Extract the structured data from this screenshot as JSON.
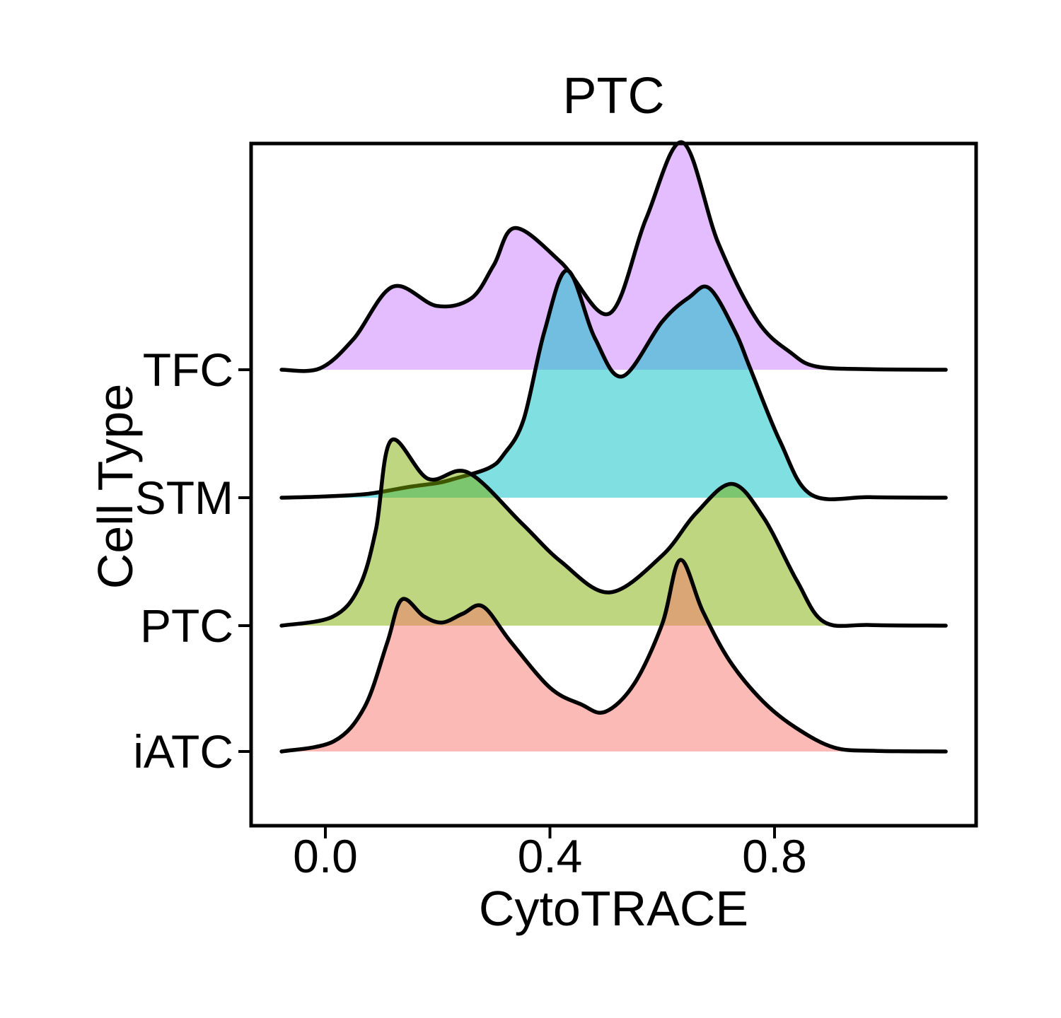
{
  "title": "PTC",
  "axes": {
    "x_label": "CytoTRACE",
    "y_label": "Cell Type",
    "x_ticks": [
      {
        "value": 0.0,
        "label": "0.0"
      },
      {
        "value": 0.4,
        "label": "0.4"
      },
      {
        "value": 0.8,
        "label": "0.8"
      }
    ],
    "y_ticks": [
      "TFC",
      "STM",
      "PTC",
      "iATC"
    ]
  },
  "style": {
    "outline_color": "#000000",
    "fill_opacity": 0.5,
    "background": "#ffffff"
  },
  "chart_data": {
    "type": "area",
    "variant": "ridgeline-density",
    "title": "PTC",
    "xlabel": "CytoTRACE",
    "ylabel": "Cell Type",
    "x_range_shown": [
      -0.13,
      1.16
    ],
    "x_tick_values": [
      0.0,
      0.4,
      0.8
    ],
    "grid": false,
    "legend": false,
    "categories_top_to_bottom": [
      "TFC",
      "STM",
      "PTC",
      "iATC"
    ],
    "series": [
      {
        "name": "TFC",
        "fill": "#C77CFF",
        "fill_opacity": 0.5,
        "outline": "#000000",
        "peaks_x": [
          0.12,
          0.34,
          0.64
        ],
        "density_profile": {
          "x": [
            -0.078,
            -0.01,
            0.05,
            0.12,
            0.198,
            0.26,
            0.3,
            0.338,
            0.42,
            0.506,
            0.571,
            0.636,
            0.7,
            0.77,
            0.83,
            0.875,
            0.97,
            1.105
          ],
          "height": [
            0,
            0.01,
            0.24,
            0.65,
            0.5,
            0.56,
            0.82,
            1.11,
            0.84,
            0.44,
            1.18,
            1.78,
            0.99,
            0.38,
            0.13,
            0.025,
            0.004,
            0
          ]
        }
      },
      {
        "name": "STM",
        "fill": "#00BFC4",
        "fill_opacity": 0.5,
        "outline": "#000000",
        "peaks_x": [
          0.43,
          0.68
        ],
        "density_profile": {
          "x": [
            -0.078,
            0.0,
            0.076,
            0.15,
            0.2,
            0.227,
            0.29,
            0.318,
            0.353,
            0.39,
            0.431,
            0.48,
            0.529,
            0.6,
            0.648,
            0.684,
            0.73,
            0.756,
            0.81,
            0.865,
            0.97,
            1.105
          ],
          "height": [
            0,
            0.01,
            0.03,
            0.085,
            0.115,
            0.145,
            0.23,
            0.34,
            0.61,
            1.3,
            1.78,
            1.25,
            0.95,
            1.38,
            1.57,
            1.64,
            1.3,
            1.02,
            0.44,
            0.025,
            0.004,
            0
          ]
        }
      },
      {
        "name": "PTC",
        "fill": "#7CAE00",
        "fill_opacity": 0.5,
        "outline": "#000000",
        "peaks_x": [
          0.117,
          0.254,
          0.724
        ],
        "density_profile": {
          "x": [
            -0.078,
            0.013,
            0.06,
            0.09,
            0.117,
            0.183,
            0.254,
            0.35,
            0.42,
            0.506,
            0.6,
            0.66,
            0.724,
            0.78,
            0.84,
            0.888,
            0.97,
            1.105
          ],
          "height": [
            0,
            0.07,
            0.3,
            0.75,
            1.45,
            1.15,
            1.2,
            0.8,
            0.5,
            0.26,
            0.55,
            0.88,
            1.11,
            0.85,
            0.35,
            0.03,
            0.005,
            0
          ]
        }
      },
      {
        "name": "iATC",
        "fill": "#F8766D",
        "fill_opacity": 0.5,
        "outline": "#000000",
        "peaks_x": [
          0.136,
          0.281,
          0.632
        ],
        "density_profile": {
          "x": [
            -0.078,
            0.015,
            0.07,
            0.11,
            0.136,
            0.175,
            0.208,
            0.245,
            0.281,
            0.33,
            0.4,
            0.455,
            0.498,
            0.55,
            0.6,
            0.632,
            0.672,
            0.72,
            0.78,
            0.84,
            0.907,
            0.98,
            1.105
          ],
          "height": [
            0,
            0.08,
            0.35,
            0.85,
            1.19,
            1.06,
            1.01,
            1.08,
            1.135,
            0.86,
            0.5,
            0.37,
            0.31,
            0.53,
            1.0,
            1.5,
            1.1,
            0.71,
            0.39,
            0.18,
            0.03,
            0.005,
            0
          ]
        }
      }
    ]
  }
}
